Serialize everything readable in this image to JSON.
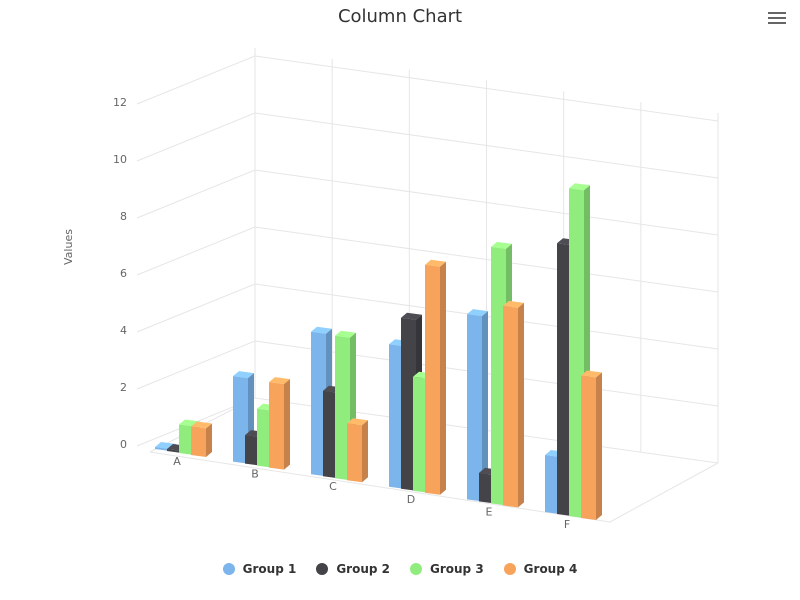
{
  "chart_data": {
    "type": "bar",
    "title": "Column Chart",
    "ylabel": "Values",
    "xlabel": "",
    "categories": [
      "A",
      "B",
      "C",
      "D",
      "E",
      "F"
    ],
    "y_ticks": [
      "0",
      "2",
      "4",
      "6",
      "8",
      "10",
      "12"
    ],
    "ylim": [
      0,
      12
    ],
    "grid": true,
    "legend_position": "bottom",
    "series": [
      {
        "name": "Group 1",
        "color": "#7cb5ec",
        "values": [
          0,
          3,
          5,
          5,
          6.5,
          2
        ]
      },
      {
        "name": "Group 2",
        "color": "#434348",
        "values": [
          0,
          1,
          3,
          6,
          1,
          9.5
        ]
      },
      {
        "name": "Group 3",
        "color": "#90ed7d",
        "values": [
          1,
          2,
          5,
          4,
          9,
          11.5
        ]
      },
      {
        "name": "Group 4",
        "color": "#f7a35c",
        "values": [
          1,
          3,
          2,
          8,
          7,
          5
        ]
      }
    ]
  },
  "toolbar": {
    "menu_icon": "hamburger-menu-icon"
  }
}
